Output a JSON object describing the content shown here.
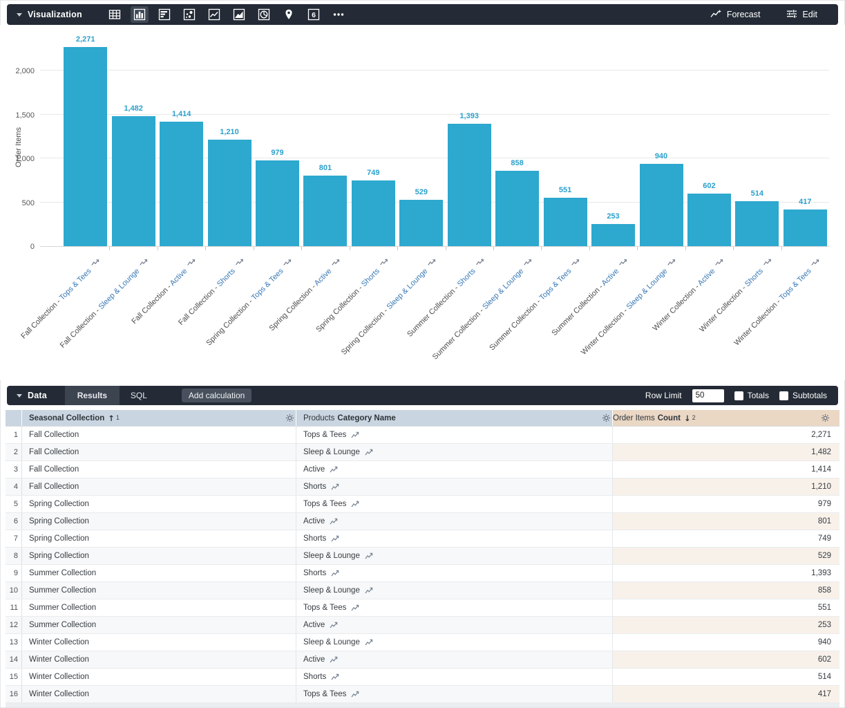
{
  "viz_toolbar": {
    "title": "Visualization",
    "chart_types": [
      {
        "name": "table",
        "selected": false
      },
      {
        "name": "column",
        "selected": true
      },
      {
        "name": "bar",
        "selected": false
      },
      {
        "name": "scatter",
        "selected": false
      },
      {
        "name": "line",
        "selected": false
      },
      {
        "name": "area",
        "selected": false
      },
      {
        "name": "pie",
        "selected": false
      },
      {
        "name": "map",
        "selected": false
      },
      {
        "name": "single-value",
        "selected": false,
        "glyph": "6"
      },
      {
        "name": "more",
        "selected": false
      }
    ],
    "forecast_label": "Forecast",
    "edit_label": "Edit"
  },
  "chart_data": {
    "type": "bar",
    "title": "",
    "xlabel": "",
    "ylabel": "Order Items",
    "ylim": [
      0,
      2300
    ],
    "yticks": [
      0,
      500,
      1000,
      1500,
      2000
    ],
    "ytick_labels": [
      "0",
      "500",
      "1,000",
      "1,500",
      "2,000"
    ],
    "grid": true,
    "legend_position": "none",
    "categories": [
      "Fall Collection - Tops & Tees",
      "Fall Collection - Sleep & Lounge",
      "Fall Collection - Active",
      "Fall Collection - Shorts",
      "Spring Collection - Tops & Tees",
      "Spring Collection - Active",
      "Spring Collection - Shorts",
      "Spring Collection - Sleep & Lounge",
      "Summer Collection - Shorts",
      "Summer Collection - Sleep & Lounge",
      "Summer Collection - Tops & Tees",
      "Summer Collection - Active",
      "Winter Collection - Sleep & Lounge",
      "Winter Collection - Active",
      "Winter Collection - Shorts",
      "Winter Collection - Tops & Tees"
    ],
    "values": [
      2271,
      1482,
      1414,
      1210,
      979,
      801,
      749,
      529,
      1393,
      858,
      551,
      253,
      940,
      602,
      514,
      417
    ],
    "value_labels": [
      "2,271",
      "1,482",
      "1,414",
      "1,210",
      "979",
      "801",
      "749",
      "529",
      "1,393",
      "858",
      "551",
      "253",
      "940",
      "602",
      "514",
      "417"
    ]
  },
  "data_toolbar": {
    "title": "Data",
    "tabs": [
      {
        "label": "Results",
        "active": true
      },
      {
        "label": "SQL",
        "active": false
      }
    ],
    "add_calculation_label": "Add calculation",
    "row_limit_label": "Row Limit",
    "row_limit_value": "50",
    "totals_label": "Totals",
    "totals_checked": false,
    "subtotals_label": "Subtotals",
    "subtotals_checked": false
  },
  "table": {
    "columns": [
      {
        "view": "",
        "field": "Seasonal Collection",
        "sort": "↑",
        "sort_order": "1",
        "type": "dimension"
      },
      {
        "view": "Products",
        "field": "Category Name",
        "sort": "",
        "sort_order": "",
        "type": "dimension"
      },
      {
        "view": "Order Items",
        "field": "Count",
        "sort": "↓",
        "sort_order": "2",
        "type": "measure"
      }
    ],
    "rows": [
      {
        "num": "1",
        "collection": "Fall Collection",
        "category": "Tops & Tees",
        "count": "2,271"
      },
      {
        "num": "2",
        "collection": "Fall Collection",
        "category": "Sleep & Lounge",
        "count": "1,482"
      },
      {
        "num": "3",
        "collection": "Fall Collection",
        "category": "Active",
        "count": "1,414"
      },
      {
        "num": "4",
        "collection": "Fall Collection",
        "category": "Shorts",
        "count": "1,210"
      },
      {
        "num": "5",
        "collection": "Spring Collection",
        "category": "Tops & Tees",
        "count": "979"
      },
      {
        "num": "6",
        "collection": "Spring Collection",
        "category": "Active",
        "count": "801"
      },
      {
        "num": "7",
        "collection": "Spring Collection",
        "category": "Shorts",
        "count": "749"
      },
      {
        "num": "8",
        "collection": "Spring Collection",
        "category": "Sleep & Lounge",
        "count": "529"
      },
      {
        "num": "9",
        "collection": "Summer Collection",
        "category": "Shorts",
        "count": "1,393"
      },
      {
        "num": "10",
        "collection": "Summer Collection",
        "category": "Sleep & Lounge",
        "count": "858"
      },
      {
        "num": "11",
        "collection": "Summer Collection",
        "category": "Tops & Tees",
        "count": "551"
      },
      {
        "num": "12",
        "collection": "Summer Collection",
        "category": "Active",
        "count": "253"
      },
      {
        "num": "13",
        "collection": "Winter Collection",
        "category": "Sleep & Lounge",
        "count": "940"
      },
      {
        "num": "14",
        "collection": "Winter Collection",
        "category": "Active",
        "count": "602"
      },
      {
        "num": "15",
        "collection": "Winter Collection",
        "category": "Shorts",
        "count": "514"
      },
      {
        "num": "16",
        "collection": "Winter Collection",
        "category": "Tops & Tees",
        "count": "417"
      }
    ]
  },
  "colors": {
    "bar": "#2DA8CE",
    "value_label": "#2AA0CC",
    "toolbar_bg": "#242B36",
    "active_tab_bg": "#3C4450",
    "dimension_header_bg": "#C9D5E0",
    "measure_header_bg": "#EAD7C4",
    "measure_cell_alt_bg": "#F8F1EA",
    "link_blue": "#3878B4"
  }
}
